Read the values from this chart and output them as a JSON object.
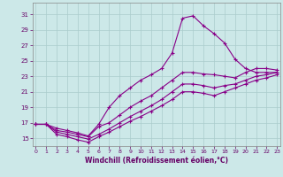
{
  "xlabel": "Windchill (Refroidissement éolien,°C)",
  "bg_color": "#cce8e8",
  "line_color": "#880088",
  "grid_color": "#aacccc",
  "x_ticks": [
    0,
    1,
    2,
    3,
    4,
    5,
    6,
    7,
    8,
    9,
    10,
    11,
    12,
    13,
    14,
    15,
    16,
    17,
    18,
    19,
    20,
    21,
    22,
    23
  ],
  "y_ticks": [
    15,
    17,
    19,
    21,
    23,
    25,
    27,
    29,
    31
  ],
  "xlim": [
    -0.3,
    23.3
  ],
  "ylim": [
    14.0,
    32.5
  ],
  "series": [
    {
      "x": [
        0,
        1,
        2,
        3,
        4,
        5,
        6,
        7,
        8,
        9,
        10,
        11,
        12,
        13,
        14,
        15,
        16,
        17,
        18,
        19,
        20,
        21,
        22,
        23
      ],
      "y": [
        16.8,
        16.8,
        16.3,
        16.0,
        15.7,
        15.3,
        16.8,
        19.0,
        20.5,
        21.5,
        22.5,
        23.2,
        24.0,
        26.0,
        30.5,
        30.8,
        29.5,
        28.5,
        27.3,
        25.2,
        24.0,
        23.5,
        23.5,
        23.5
      ]
    },
    {
      "x": [
        0,
        1,
        2,
        3,
        4,
        5,
        6,
        7,
        8,
        9,
        10,
        11,
        12,
        13,
        14,
        15,
        16,
        17,
        18,
        19,
        20,
        21,
        22,
        23
      ],
      "y": [
        16.8,
        16.8,
        16.0,
        15.8,
        15.5,
        15.2,
        16.5,
        17.0,
        18.0,
        19.0,
        19.8,
        20.5,
        21.5,
        22.5,
        23.5,
        23.5,
        23.3,
        23.2,
        23.0,
        22.8,
        23.5,
        24.0,
        24.0,
        23.8
      ]
    },
    {
      "x": [
        0,
        1,
        2,
        3,
        4,
        5,
        6,
        7,
        8,
        9,
        10,
        11,
        12,
        13,
        14,
        15,
        16,
        17,
        18,
        19,
        20,
        21,
        22,
        23
      ],
      "y": [
        16.8,
        16.8,
        15.8,
        15.5,
        15.2,
        14.9,
        15.5,
        16.2,
        17.0,
        17.8,
        18.5,
        19.2,
        20.0,
        21.0,
        22.0,
        22.0,
        21.8,
        21.5,
        21.8,
        22.0,
        22.5,
        23.0,
        23.2,
        23.5
      ]
    },
    {
      "x": [
        0,
        1,
        2,
        3,
        4,
        5,
        6,
        7,
        8,
        9,
        10,
        11,
        12,
        13,
        14,
        15,
        16,
        17,
        18,
        19,
        20,
        21,
        22,
        23
      ],
      "y": [
        16.8,
        16.8,
        15.5,
        15.2,
        14.8,
        14.5,
        15.2,
        15.8,
        16.5,
        17.2,
        17.8,
        18.5,
        19.2,
        20.0,
        21.0,
        21.0,
        20.8,
        20.5,
        21.0,
        21.5,
        22.0,
        22.5,
        22.8,
        23.2
      ]
    }
  ]
}
